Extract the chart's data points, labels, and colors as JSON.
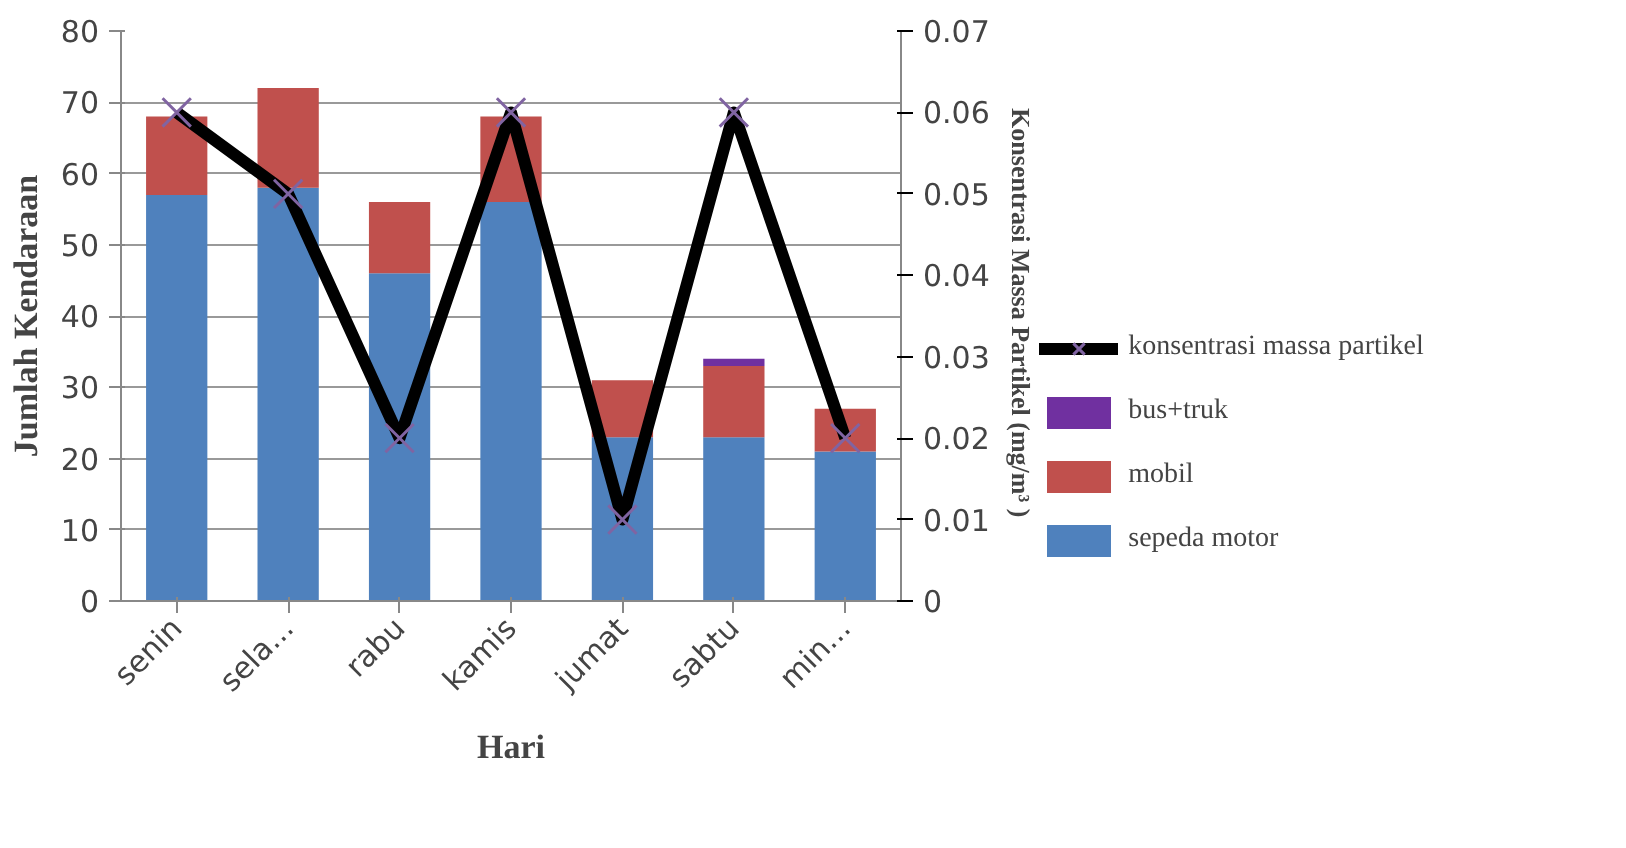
{
  "chart_data": {
    "type": "bar",
    "stacked": true,
    "categories": [
      "senin",
      "sela...",
      "rabu",
      "kamis",
      "jumat",
      "sabtu",
      "min..."
    ],
    "xlabel": "Hari",
    "ylabel": "Jumlah Kendaraan",
    "y2label": "Konsentrasi Massa Partikel  (mg/m³ )",
    "series": [
      {
        "name": "sepeda motor",
        "color": "#4f81bd",
        "values": [
          57,
          58,
          46,
          56,
          23,
          23,
          21
        ]
      },
      {
        "name": "mobil",
        "color": "#c0504d",
        "values": [
          11,
          14,
          10,
          12,
          8,
          10,
          6
        ]
      },
      {
        "name": "bus+truk",
        "color": "#7030a0",
        "values": [
          0,
          0,
          0,
          0,
          0,
          1,
          0
        ]
      },
      {
        "name": "konsentrasi massa partikel",
        "type": "line",
        "axis": "y2",
        "color": "#000000",
        "marker": "cross",
        "values": [
          0.06,
          0.05,
          0.02,
          0.06,
          0.01,
          0.06,
          0.02
        ]
      }
    ],
    "ylim": [
      0,
      80
    ],
    "yticks": [
      0,
      10,
      20,
      30,
      40,
      50,
      60,
      70,
      80
    ],
    "y2lim": [
      0,
      0.07
    ],
    "y2ticks": [
      0,
      0.01,
      0.02,
      0.03,
      0.04,
      0.05,
      0.06,
      0.07
    ],
    "grid": "y",
    "legend": "right"
  }
}
